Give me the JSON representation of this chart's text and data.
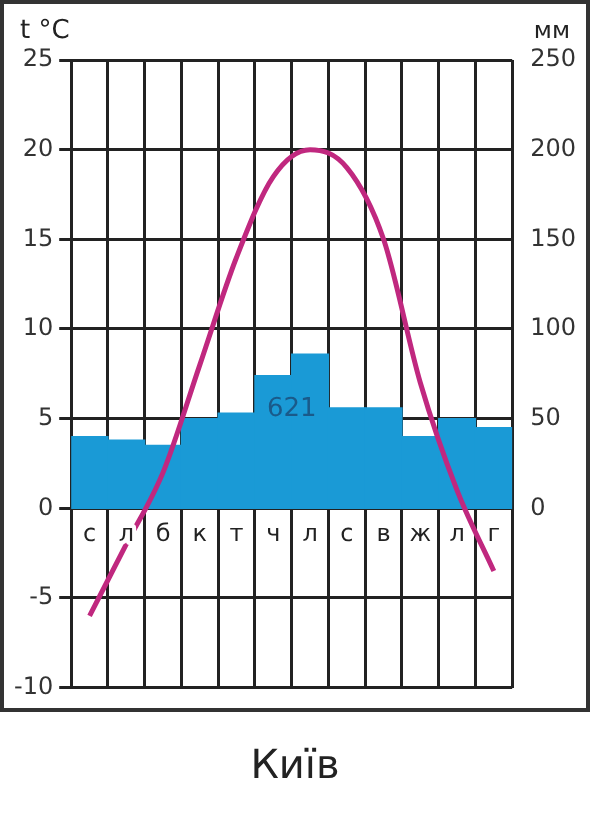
{
  "chart_data": {
    "type": "bar",
    "title": "Київ",
    "ylabel": "t °C",
    "y2label": "мм",
    "annotations": [
      "621"
    ],
    "categories": [
      "с",
      "л",
      "б",
      "к",
      "т",
      "ч",
      "л",
      "с",
      "в",
      "ж",
      "л",
      "г"
    ],
    "series": [
      {
        "axis": "y2",
        "color": "#1a9ad6",
        "values": [
          40,
          38,
          35,
          50,
          53,
          74,
          86,
          56,
          56,
          40,
          50,
          45
        ]
      },
      {
        "type": "line",
        "axis": "y",
        "color": "#c0287f",
        "values": [
          -6,
          -2,
          2,
          8,
          14,
          18.5,
          20,
          19,
          15,
          7,
          1,
          -3.5
        ]
      }
    ],
    "ylim": [
      -10,
      25
    ],
    "yticks": [
      -10,
      -5,
      0,
      5,
      10,
      15,
      20,
      25
    ],
    "y2lim": [
      -100,
      250
    ],
    "y2ticks": [
      0,
      50,
      100,
      150,
      200,
      250
    ],
    "grid": true,
    "legend": false,
    "marker": "none",
    "line_style": "solid"
  }
}
